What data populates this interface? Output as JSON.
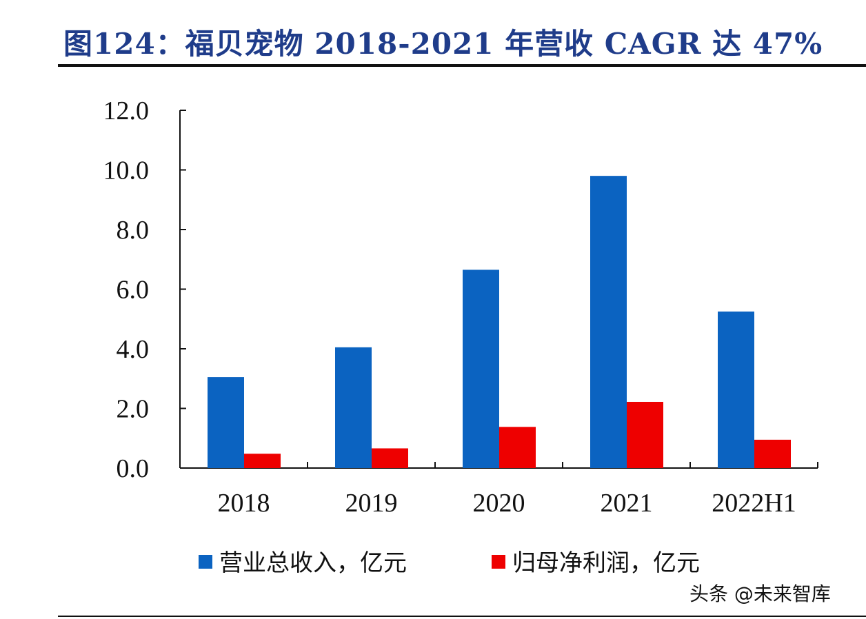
{
  "title": "图124：福贝宠物 2018-2021 年营收 CAGR 达 47%",
  "watermark": "头条 @未来智库",
  "colors": {
    "title": "#1F3C8A",
    "revenue": "#0B63C1",
    "profit": "#EE0000",
    "axis": "#111111"
  },
  "chart_data": {
    "type": "bar",
    "categories": [
      "2018",
      "2019",
      "2020",
      "2021",
      "2022H1"
    ],
    "series": [
      {
        "name": "营业总收入，亿元",
        "values": [
          3.05,
          4.05,
          6.65,
          9.8,
          5.25
        ]
      },
      {
        "name": "归母净利润，亿元",
        "values": [
          0.48,
          0.66,
          1.38,
          2.22,
          0.95
        ]
      }
    ],
    "yticks": [
      "0.0",
      "2.0",
      "4.0",
      "6.0",
      "8.0",
      "10.0",
      "12.0"
    ],
    "ylim": [
      0,
      12
    ],
    "grid": false,
    "legend_position": "bottom",
    "xlabel": "",
    "ylabel": ""
  }
}
